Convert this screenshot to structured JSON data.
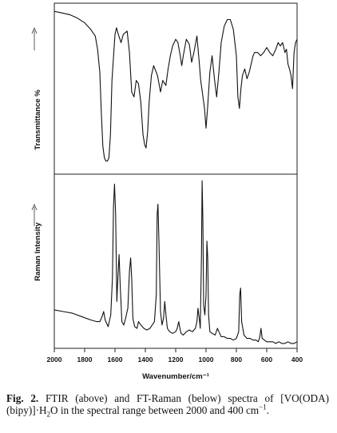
{
  "chart_data": [
    {
      "type": "line",
      "panel": "FTIR",
      "ylabel": "Transmittance %",
      "x_axis": {
        "reversed": true,
        "xlim": [
          400,
          2000
        ]
      },
      "y_axis": {
        "ticks_shown": false,
        "arrow": "up",
        "ylim": [
          0,
          100
        ]
      },
      "series": [
        {
          "x": [
            2000,
            1950,
            1900,
            1850,
            1800,
            1760,
            1730,
            1715,
            1700,
            1690,
            1680,
            1670,
            1660,
            1650,
            1640,
            1630,
            1620,
            1600,
            1590,
            1575,
            1560,
            1545,
            1520,
            1505,
            1490,
            1475,
            1460,
            1445,
            1430,
            1415,
            1405,
            1395,
            1385,
            1375,
            1360,
            1345,
            1320,
            1300,
            1285,
            1265,
            1250,
            1235,
            1220,
            1200,
            1185,
            1170,
            1160,
            1150,
            1130,
            1110,
            1095,
            1080,
            1060,
            1045,
            1035,
            1025,
            1010,
            1000,
            990,
            975,
            960,
            945,
            930,
            915,
            900,
            880,
            860,
            840,
            820,
            800,
            790,
            780,
            770,
            760,
            745,
            730,
            715,
            700,
            690,
            680,
            660,
            640,
            620,
            600,
            580,
            560,
            540,
            525,
            510,
            495,
            480,
            470,
            460,
            450,
            440,
            430,
            420,
            410,
            400
          ],
          "y": [
            97,
            96,
            95,
            93,
            90,
            86,
            82,
            74,
            60,
            35,
            15,
            8,
            6,
            6,
            8,
            22,
            55,
            83,
            87,
            82,
            78,
            83,
            85,
            72,
            48,
            45,
            55,
            53,
            42,
            22,
            16,
            14,
            24,
            42,
            58,
            64,
            58,
            48,
            55,
            52,
            62,
            70,
            76,
            80,
            78,
            70,
            64,
            70,
            80,
            77,
            66,
            72,
            82,
            66,
            55,
            48,
            38,
            26,
            38,
            60,
            70,
            56,
            45,
            60,
            78,
            88,
            92,
            92,
            86,
            70,
            45,
            38,
            50,
            58,
            62,
            56,
            60,
            66,
            70,
            72,
            72,
            70,
            72,
            75,
            72,
            70,
            74,
            78,
            76,
            78,
            72,
            74,
            65,
            62,
            58,
            50,
            72,
            78,
            80
          ]
        }
      ]
    },
    {
      "type": "line",
      "panel": "FT-Raman",
      "xlabel": "Wavenumber/cm⁻¹",
      "ylabel": "Raman Intensity",
      "x_axis": {
        "reversed": true,
        "xlim": [
          400,
          2000
        ],
        "ticks": [
          2000,
          1800,
          1600,
          1400,
          1200,
          1000,
          800,
          600,
          400
        ]
      },
      "y_axis": {
        "ticks_shown": false,
        "arrow": "up",
        "ylim": [
          0,
          100
        ]
      },
      "series": [
        {
          "x": [
            2000,
            1940,
            1880,
            1820,
            1760,
            1720,
            1700,
            1685,
            1675,
            1665,
            1645,
            1628,
            1617,
            1610,
            1603,
            1596,
            1588,
            1580,
            1573,
            1566,
            1555,
            1542,
            1530,
            1515,
            1505,
            1497,
            1490,
            1482,
            1470,
            1455,
            1445,
            1430,
            1410,
            1390,
            1370,
            1355,
            1340,
            1328,
            1322,
            1317,
            1310,
            1300,
            1290,
            1280,
            1272,
            1264,
            1255,
            1240,
            1220,
            1200,
            1190,
            1180,
            1172,
            1165,
            1150,
            1130,
            1110,
            1090,
            1070,
            1060,
            1053,
            1045,
            1038,
            1030,
            1026,
            1021,
            1016,
            1008,
            1000,
            994,
            989,
            983,
            975,
            960,
            940,
            925,
            915,
            900,
            880,
            860,
            840,
            820,
            800,
            785,
            778,
            772,
            765,
            750,
            730,
            710,
            690,
            670,
            655,
            645,
            638,
            630,
            615,
            600,
            580,
            560,
            540,
            520,
            500,
            480,
            460,
            440,
            420,
            400
          ],
          "y": [
            21,
            20,
            19,
            17,
            15,
            14,
            14,
            17,
            20,
            15,
            11,
            18,
            40,
            82,
            96,
            78,
            26,
            42,
            54,
            36,
            14,
            12,
            16,
            22,
            44,
            52,
            40,
            16,
            11,
            10,
            14,
            12,
            10,
            9,
            10,
            12,
            14,
            30,
            78,
            84,
            60,
            20,
            12,
            16,
            26,
            18,
            10,
            8,
            7,
            8,
            10,
            14,
            10,
            7,
            6,
            8,
            9,
            8,
            10,
            14,
            22,
            16,
            10,
            54,
            98,
            76,
            24,
            18,
            30,
            62,
            52,
            18,
            8,
            7,
            6,
            10,
            8,
            5,
            5,
            4,
            4,
            3,
            4,
            8,
            30,
            34,
            14,
            6,
            4,
            4,
            3,
            3,
            2,
            5,
            10,
            4,
            3,
            2,
            2,
            2,
            1,
            2,
            1,
            1,
            2,
            1,
            1,
            2
          ]
        }
      ]
    }
  ],
  "caption": {
    "label": "Fig. 2.",
    "text_before_sub": " FTIR (above) and FT-Raman (below) spectra of [VO(ODA)(bipy)]·H",
    "sub": "2",
    "text_after_sub": "O in the spectral range between 2000 and 400 cm",
    "sup": "−1",
    "text_end": "."
  }
}
